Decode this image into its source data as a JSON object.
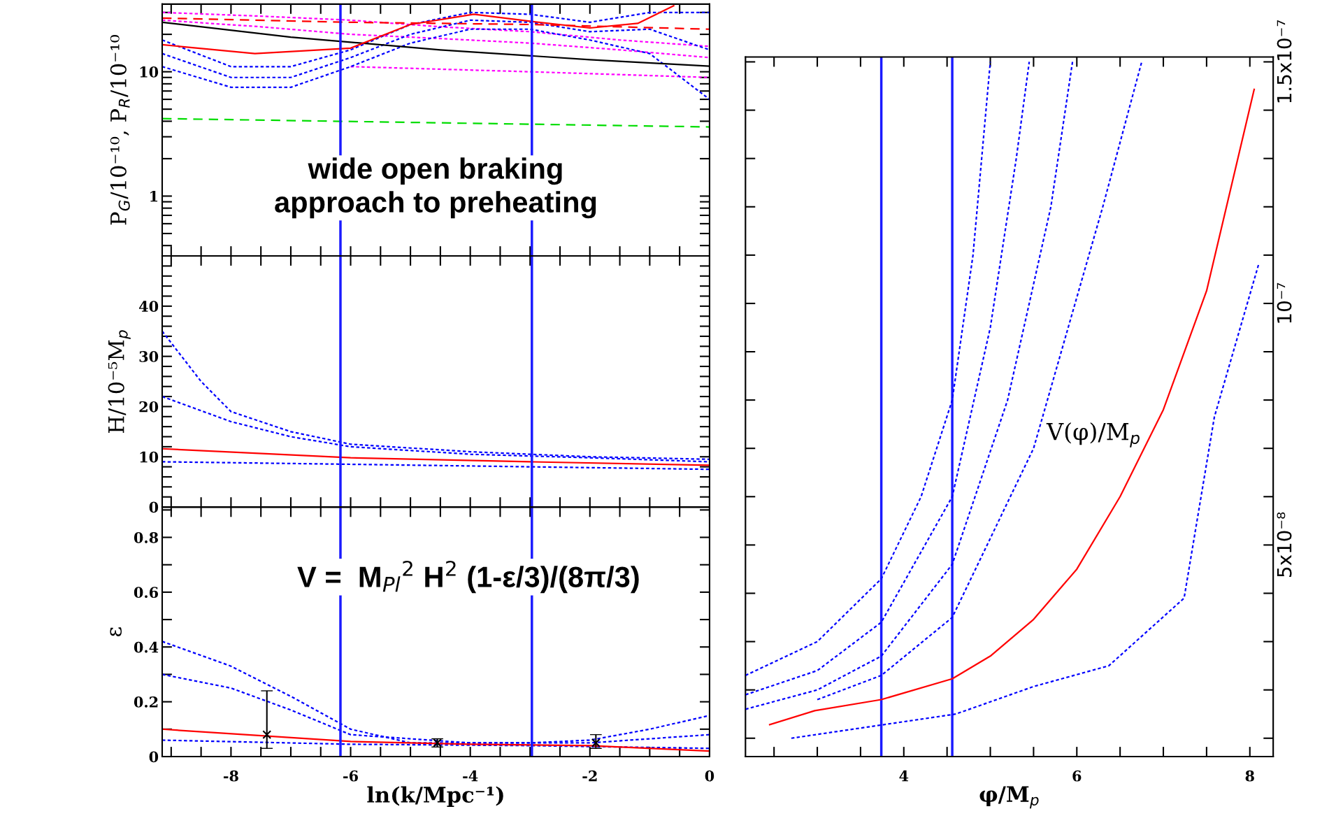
{
  "chart_data": [
    {
      "type": "line",
      "ylabel": "P$_{G}$/10⁻¹⁰, P$_{R}$/10⁻¹⁰",
      "log": "y",
      "xlim": [
        -9.15,
        0
      ],
      "ylim": [
        0.33,
        35
      ],
      "tick_labels": "y",
      "xticks": [
        -9,
        -8.5,
        -8,
        -7.5,
        -7,
        -6.5,
        -6,
        -5.5,
        -5,
        -4.5,
        -4,
        -3.5,
        -3,
        -2.5,
        -2,
        -1.5,
        -1,
        -0.5,
        0
      ],
      "yticks": [
        {
          "value": 0.4,
          "label": null
        },
        {
          "value": 0.5,
          "label": null
        },
        {
          "value": 0.6,
          "label": null
        },
        {
          "value": 0.7,
          "label": null
        },
        {
          "value": 0.8,
          "label": null
        },
        {
          "value": 0.9,
          "label": null
        },
        1,
        {
          "value": 2,
          "label": null
        },
        {
          "value": 3,
          "label": null
        },
        {
          "value": 4,
          "label": null
        },
        {
          "value": 5,
          "label": null
        },
        {
          "value": 6,
          "label": null
        },
        {
          "value": 7,
          "label": null
        },
        {
          "value": 8,
          "label": null
        },
        {
          "value": 9,
          "label": null
        },
        10,
        {
          "value": 20,
          "label": null
        },
        {
          "value": 30,
          "label": null
        }
      ],
      "grid": false,
      "legend": false,
      "marker": "none",
      "annotations": [
        "wide open braking\napproach to preheating"
      ],
      "ref_lines": [
        {
          "axis": "x",
          "value": -6.17,
          "color": "#1a1aff",
          "line_style": "solid"
        },
        {
          "axis": "x",
          "value": -2.97,
          "color": "#1a1aff",
          "line_style": "solid"
        }
      ],
      "series": [
        {
          "color": "#ff00ff",
          "line_style": "dotted",
          "x": [
            -9.15,
            -7.5,
            -6,
            -4.5,
            -3,
            -1.5,
            0
          ],
          "values": [
            30,
            28,
            26,
            23,
            21,
            18,
            16
          ]
        },
        {
          "color": "#ff00ff",
          "line_style": "dotted",
          "x": [
            -9.15,
            -7.5,
            -6,
            -4.5,
            -3,
            -1.5,
            0
          ],
          "values": [
            26,
            23,
            20,
            18.5,
            17,
            15,
            13
          ]
        },
        {
          "color": "#ff00ff",
          "line_style": "dotted",
          "x": [
            -6,
            -3,
            0
          ],
          "values": [
            11,
            10,
            9
          ]
        },
        {
          "color": "#0000ff",
          "line_style": "dotted",
          "x": [
            -9.15,
            -8,
            -7,
            -6,
            -5,
            -4,
            -3,
            -2,
            -1,
            0
          ],
          "values": [
            18,
            11,
            11,
            15,
            24,
            30,
            29,
            25,
            30,
            30
          ]
        },
        {
          "color": "#0000ff",
          "line_style": "dotted",
          "x": [
            -9.15,
            -8,
            -7,
            -6,
            -5,
            -4,
            -3,
            -2,
            -1,
            0
          ],
          "values": [
            14,
            9,
            9,
            13,
            20,
            26,
            25,
            21,
            22,
            15
          ]
        },
        {
          "color": "#0000ff",
          "line_style": "dotted",
          "x": [
            -9.15,
            -8,
            -7,
            -6,
            -5,
            -4,
            -3,
            -2,
            -1,
            0
          ],
          "values": [
            11,
            7.5,
            7.5,
            11,
            17,
            22,
            22,
            18,
            14,
            6
          ]
        },
        {
          "color": "#ff0000",
          "line_style": "dashed",
          "x": [
            -9.15,
            -6,
            -3,
            0
          ],
          "values": [
            27,
            25,
            24,
            22
          ]
        },
        {
          "color": "#000000",
          "line_style": "solid",
          "x": [
            -9.15,
            -7,
            -4.5,
            -2,
            0
          ],
          "values": [
            25,
            19,
            15,
            12.5,
            11.1
          ]
        },
        {
          "color": "#00dd00",
          "line_style": "dashed",
          "x": [
            -9.15,
            0
          ],
          "values": [
            4.2,
            3.6
          ]
        },
        {
          "color": "#ff0000",
          "line_style": "solid",
          "x": [
            -9.15,
            -7.6,
            -6,
            -5,
            -3.94,
            -3,
            -2,
            -1.2,
            -0.6
          ],
          "values": [
            16.5,
            14,
            15.5,
            24,
            29,
            25.5,
            22.5,
            24.5,
            34
          ]
        }
      ]
    },
    {
      "type": "line",
      "ylabel": "H/10⁻⁵M$_{p}$",
      "xlim": [
        -9.15,
        0
      ],
      "ylim": [
        0,
        50
      ],
      "tick_labels": "y",
      "xticks": [
        -9,
        -8.5,
        -8,
        -7.5,
        -7,
        -6.5,
        -6,
        -5.5,
        -5,
        -4.5,
        -4,
        -3.5,
        -3,
        -2.5,
        -2,
        -1.5,
        -1,
        -0.5,
        0
      ],
      "yticks": [
        0,
        {
          "value": 2,
          "label": null
        },
        {
          "value": 4,
          "label": null
        },
        {
          "value": 6,
          "label": null
        },
        {
          "value": 8,
          "label": null
        },
        10,
        {
          "value": 12,
          "label": null
        },
        {
          "value": 14,
          "label": null
        },
        {
          "value": 16,
          "label": null
        },
        {
          "value": 18,
          "label": null
        },
        20,
        {
          "value": 22,
          "label": null
        },
        {
          "value": 24,
          "label": null
        },
        {
          "value": 26,
          "label": null
        },
        {
          "value": 28,
          "label": null
        },
        30,
        {
          "value": 32,
          "label": null
        },
        {
          "value": 34,
          "label": null
        },
        {
          "value": 36,
          "label": null
        },
        {
          "value": 38,
          "label": null
        },
        40,
        {
          "value": 42,
          "label": null
        },
        {
          "value": 44,
          "label": null
        },
        {
          "value": 46,
          "label": null
        },
        {
          "value": 48,
          "label": null
        }
      ],
      "grid": false,
      "legend": false,
      "marker": "none",
      "ref_lines": [
        {
          "axis": "x",
          "value": -6.17,
          "color": "#1a1aff",
          "line_style": "solid"
        },
        {
          "axis": "x",
          "value": -2.97,
          "color": "#1a1aff",
          "line_style": "solid"
        }
      ],
      "series": [
        {
          "color": "#0000ff",
          "line_style": "dotted",
          "x": [
            -9.15,
            -8.5,
            -8,
            -7,
            -6,
            -4,
            -2,
            0
          ],
          "values": [
            35,
            25,
            19,
            15,
            12.5,
            11,
            10,
            9.5
          ]
        },
        {
          "color": "#0000ff",
          "line_style": "dotted",
          "x": [
            -9.15,
            -8,
            -7,
            -6,
            -4,
            -2,
            0
          ],
          "values": [
            22,
            17,
            14,
            12,
            10.5,
            9.8,
            9
          ]
        },
        {
          "color": "#0000ff",
          "line_style": "dotted",
          "x": [
            -9.15,
            -6,
            -3,
            0
          ],
          "values": [
            9,
            8.5,
            8,
            7.5
          ]
        },
        {
          "color": "#ff0000",
          "line_style": "solid",
          "x": [
            -9.15,
            -6,
            -3,
            0
          ],
          "values": [
            11.6,
            9.8,
            9,
            8.3
          ]
        }
      ]
    },
    {
      "type": "line",
      "ylabel": "ε",
      "xlabel": "ln(k/Mpc⁻¹)",
      "xlim": [
        -9.15,
        0
      ],
      "ylim": [
        0,
        0.91
      ],
      "xticks": [
        {
          "value": -9,
          "label": null
        },
        {
          "value": -8.5,
          "label": null
        },
        -8,
        {
          "value": -7.5,
          "label": null
        },
        {
          "value": -7,
          "label": null
        },
        {
          "value": -6.5,
          "label": null
        },
        -6,
        {
          "value": -5.5,
          "label": null
        },
        {
          "value": -5,
          "label": null
        },
        {
          "value": -4.5,
          "label": null
        },
        -4,
        {
          "value": -3.5,
          "label": null
        },
        {
          "value": -3,
          "label": null
        },
        {
          "value": -2.5,
          "label": null
        },
        -2,
        {
          "value": -1.5,
          "label": null
        },
        {
          "value": -1,
          "label": null
        },
        {
          "value": -0.5,
          "label": null
        },
        0
      ],
      "yticks": [
        0,
        {
          "value": 0.1,
          "label": null
        },
        0.2,
        {
          "value": 0.3,
          "label": null
        },
        0.4,
        {
          "value": 0.5,
          "label": null
        },
        0.6,
        {
          "value": 0.7,
          "label": null
        },
        0.8,
        {
          "value": 0.9,
          "label": null
        }
      ],
      "grid": false,
      "legend": false,
      "marker": "none",
      "annotations": [
        "V =  M$_{Pl}$$^{2}$ H$^{2}$ (1-ε/3)/(8π/3)"
      ],
      "ref_lines": [
        {
          "axis": "x",
          "value": -6.17,
          "color": "#1a1aff",
          "line_style": "solid"
        },
        {
          "axis": "x",
          "value": -2.97,
          "color": "#1a1aff",
          "line_style": "solid"
        }
      ],
      "series": [
        {
          "color": "#0000ff",
          "line_style": "dotted",
          "x": [
            -9.15,
            -8,
            -7,
            -6,
            -5,
            -3,
            -2,
            -1,
            0
          ],
          "values": [
            0.42,
            0.33,
            0.22,
            0.1,
            0.05,
            0.05,
            0.06,
            0.1,
            0.15
          ]
        },
        {
          "color": "#0000ff",
          "line_style": "dotted",
          "x": [
            -9.15,
            -8,
            -7,
            -6,
            -4,
            -2,
            0
          ],
          "values": [
            0.3,
            0.25,
            0.17,
            0.08,
            0.05,
            0.05,
            0.08
          ]
        },
        {
          "color": "#0000ff",
          "line_style": "dotted",
          "x": [
            -9.15,
            -6,
            -3,
            0
          ],
          "values": [
            0.06,
            0.045,
            0.04,
            0.03
          ]
        },
        {
          "color": "#ff0000",
          "line_style": "solid",
          "x": [
            -9.15,
            -6,
            -4,
            -2,
            0
          ],
          "values": [
            0.1,
            0.055,
            0.045,
            0.04,
            0.02
          ]
        },
        {
          "type": "scatter",
          "color": "#000000",
          "marker": "cross",
          "x": [
            -7.4,
            -4.55,
            -1.9
          ],
          "values": [
            0.08,
            0.05,
            0.05
          ],
          "errors": [
            [
              0.03,
              0.24
            ],
            [
              0.035,
              0.065
            ],
            [
              0.03,
              0.08
            ]
          ]
        }
      ]
    },
    {
      "type": "line",
      "xlabel": "φ/M$_{p}$",
      "xlim": [
        2.17,
        8.27
      ],
      "y2lim": [
        6.2e-09,
        1.51e-07
      ],
      "xticks": [
        {
          "value": 2.5,
          "label": null
        },
        {
          "value": 3,
          "label": null
        },
        {
          "value": 3.5,
          "label": null
        },
        4,
        {
          "value": 4.5,
          "label": null
        },
        {
          "value": 5,
          "label": null
        },
        {
          "value": 5.5,
          "label": null
        },
        6,
        {
          "value": 6.5,
          "label": null
        },
        {
          "value": 7,
          "label": null
        },
        {
          "value": 7.5,
          "label": null
        },
        8
      ],
      "y2ticks": [
        {
          "value": 1e-08,
          "label": null
        },
        {
          "value": 2e-08,
          "label": null
        },
        {
          "value": 3e-08,
          "label": null
        },
        {
          "value": 4e-08,
          "label": null
        },
        {
          "value": 5e-08,
          "label": "5x10⁻⁸"
        },
        {
          "value": 6e-08,
          "label": null
        },
        {
          "value": 7e-08,
          "label": null
        },
        {
          "value": 8e-08,
          "label": null
        },
        {
          "value": 9e-08,
          "label": null
        },
        {
          "value": 1e-07,
          "label": "10⁻⁷"
        },
        {
          "value": 1.1e-07,
          "label": null
        },
        {
          "value": 1.2e-07,
          "label": null
        },
        {
          "value": 1.3e-07,
          "label": null
        },
        {
          "value": 1.4e-07,
          "label": null
        },
        {
          "value": 1.5e-07,
          "label": "1.5x10⁻⁷"
        }
      ],
      "grid": false,
      "legend": false,
      "marker": "none",
      "annotations": [
        "V(φ)/M$_{p}$"
      ],
      "ref_lines": [
        {
          "axis": "x",
          "value": 3.74,
          "color": "#1a1aff",
          "line_style": "solid"
        },
        {
          "axis": "x",
          "value": 4.56,
          "color": "#1a1aff",
          "line_style": "solid"
        }
      ],
      "series": [
        {
          "axis": "y2",
          "color": "#0000ff",
          "line_style": "dotted",
          "x": [
            2.17,
            3,
            3.74,
            4.2,
            4.56,
            4.8,
            5.0
          ],
          "values": [
            2.3e-08,
            3e-08,
            4.3e-08,
            6e-08,
            8e-08,
            1.1e-07,
            1.5e-07
          ]
        },
        {
          "axis": "y2",
          "color": "#0000ff",
          "line_style": "dotted",
          "x": [
            2.17,
            3,
            3.74,
            4.56,
            5,
            5.3,
            5.45
          ],
          "values": [
            1.9e-08,
            2.4e-08,
            3.4e-08,
            6e-08,
            9.5e-08,
            1.3e-07,
            1.5e-07
          ]
        },
        {
          "axis": "y2",
          "color": "#0000ff",
          "line_style": "dotted",
          "x": [
            2.17,
            3,
            3.74,
            4.56,
            5.2,
            5.7,
            5.95
          ],
          "values": [
            1.6e-08,
            2e-08,
            2.7e-08,
            4.6e-08,
            8e-08,
            1.2e-07,
            1.5e-07
          ]
        },
        {
          "axis": "y2",
          "color": "#0000ff",
          "line_style": "dotted",
          "x": [
            3,
            3.74,
            4.56,
            5.5,
            6.3,
            6.75
          ],
          "values": [
            1.8e-08,
            2.3e-08,
            3.5e-08,
            7e-08,
            1.2e-07,
            1.5e-07
          ]
        },
        {
          "axis": "y2",
          "color": "#0000ff",
          "line_style": "dotted",
          "x": [
            2.7,
            4.6,
            5.5,
            6.37,
            7.24,
            7.59,
            8.1
          ],
          "values": [
            1e-08,
            1.5e-08,
            2.07e-08,
            2.5e-08,
            3.9e-08,
            7.65e-08,
            1.08e-07
          ]
        },
        {
          "axis": "y2",
          "color": "#ff0000",
          "line_style": "solid",
          "x": [
            2.45,
            2.97,
            3.74,
            4.56,
            5,
            5.5,
            6,
            6.5,
            7,
            7.5,
            8.05
          ],
          "values": [
            1.28e-08,
            1.57e-08,
            1.8e-08,
            2.23e-08,
            2.7e-08,
            3.46e-08,
            4.5e-08,
            6e-08,
            7.8e-08,
            1.026e-07,
            1.443e-07
          ]
        }
      ]
    }
  ]
}
